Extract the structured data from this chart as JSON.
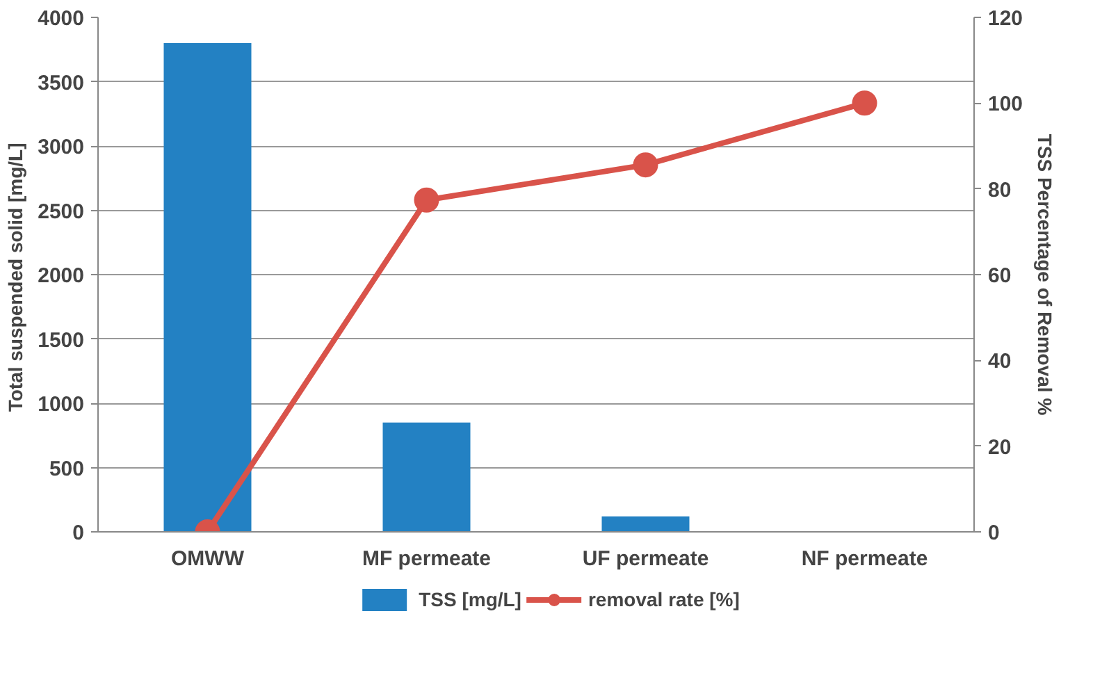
{
  "chart_data": {
    "type": "bar",
    "categories": [
      "OMWW",
      "MF permeate",
      "UF permeate",
      "NF permeate"
    ],
    "ylabel": "Total suspended solid  [mg/L]",
    "y2label": "TSS Percentage of Removal %",
    "ylim": [
      0,
      4000
    ],
    "yticks": [
      0,
      500,
      1000,
      1500,
      2000,
      2500,
      3000,
      3500,
      4000
    ],
    "y2lim": [
      0,
      120
    ],
    "y2ticks": [
      0,
      20,
      40,
      60,
      80,
      100,
      120
    ],
    "grid": "y",
    "legend": "bottom",
    "series": [
      {
        "name": "TSS [mg/L]",
        "color": "#2381c3",
        "values": [
          3800,
          850,
          120,
          0
        ]
      },
      {
        "name": "removal rate [%]",
        "type": "line",
        "axis": "y2",
        "marker": "circle",
        "color": "#d9534a",
        "values": [
          0,
          77.4,
          85.6,
          100
        ]
      }
    ]
  }
}
